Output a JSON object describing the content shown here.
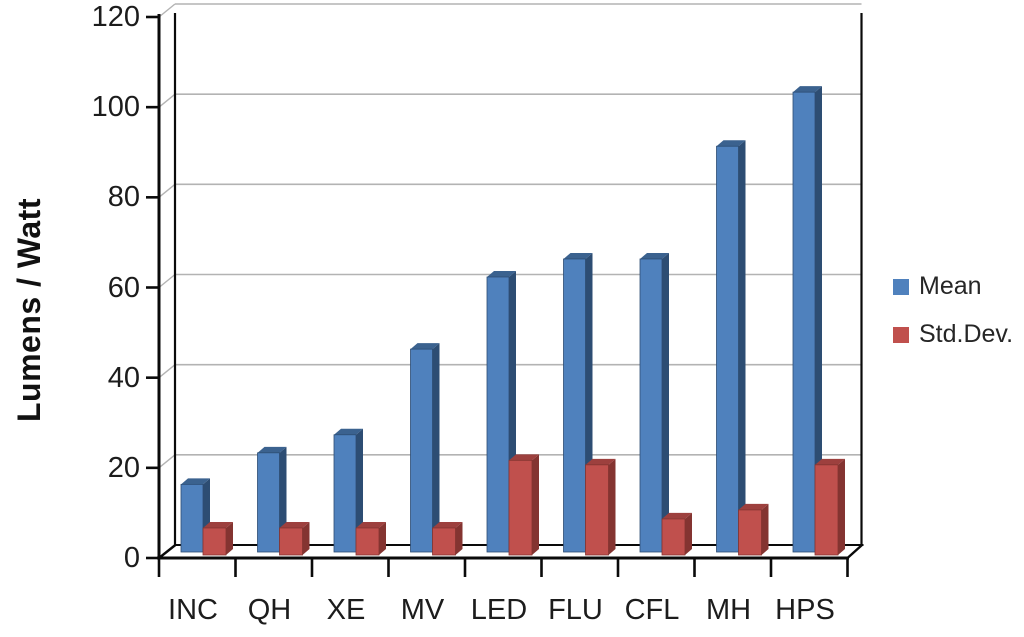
{
  "chart_data": {
    "type": "bar",
    "subtype": "3d-clustered-column",
    "title": "",
    "xlabel": "",
    "ylabel": "Lumens / Watt",
    "categories": [
      "INC",
      "QH",
      "XE",
      "MV",
      "LED",
      "FLU",
      "CFL",
      "MH",
      "HPS"
    ],
    "series": [
      {
        "name": "Mean",
        "values": [
          15,
          22,
          26,
          45,
          61,
          65,
          65,
          90,
          102
        ],
        "color": "#4f81bd",
        "color_top": "#3b628f",
        "color_side": "#2d4d73"
      },
      {
        "name": "Std.Dev.",
        "values": [
          6,
          6,
          6,
          6,
          21,
          20,
          8,
          10,
          20
        ],
        "color": "#c0504d",
        "color_top": "#9d403e",
        "color_side": "#843431"
      }
    ],
    "ylim": [
      0,
      120
    ],
    "ytick_interval": 20,
    "yticks": [
      0,
      20,
      40,
      60,
      80,
      100,
      120
    ],
    "grid": "horizontal",
    "legend_position": "right",
    "axis_color": "#0a0a0a",
    "gridline_color": "#b3b3b3",
    "background_color": "#ffffff"
  }
}
